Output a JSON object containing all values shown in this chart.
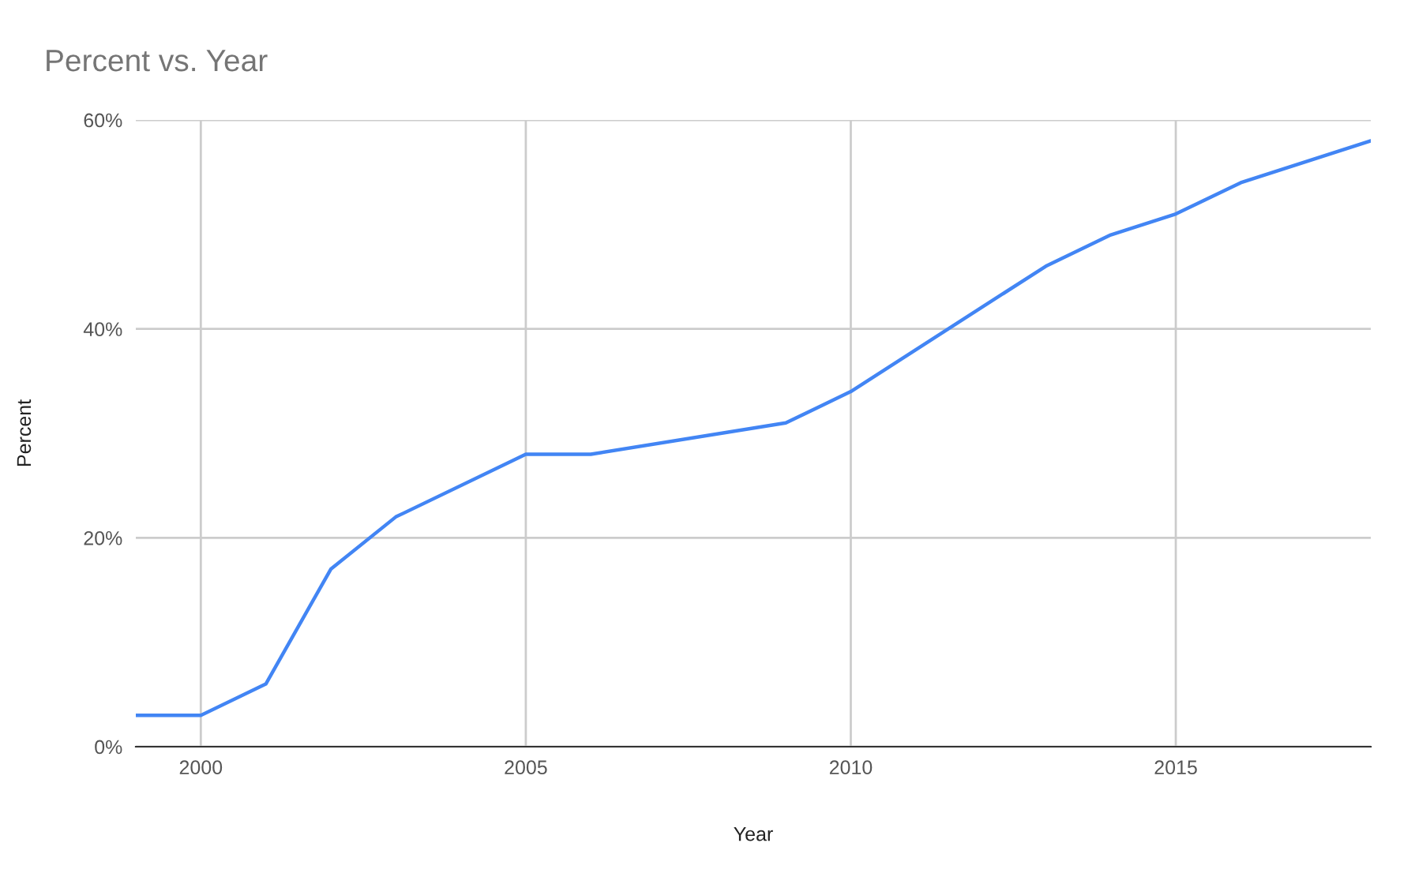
{
  "chart_data": {
    "type": "line",
    "title": "Percent vs. Year",
    "xlabel": "Year",
    "ylabel": "Percent",
    "x": [
      1999,
      2000,
      2001,
      2002,
      2003,
      2005,
      2006,
      2009,
      2010,
      2013,
      2014,
      2015,
      2016,
      2018
    ],
    "series": [
      {
        "color": "#4285f4",
        "values": [
          3,
          3,
          6,
          17,
          22,
          28,
          28,
          31,
          34,
          46,
          49,
          51,
          54,
          58
        ]
      }
    ],
    "xlim": [
      1999,
      2018
    ],
    "xticks": [
      2000,
      2005,
      2010,
      2015
    ],
    "ylim": [
      0,
      60
    ],
    "yticks": [
      {
        "value": 0,
        "label": "0%"
      },
      {
        "value": 20,
        "label": "20%"
      },
      {
        "value": 40,
        "label": "40%"
      },
      {
        "value": 60,
        "label": "60%"
      }
    ],
    "grid": true,
    "legend": false
  }
}
